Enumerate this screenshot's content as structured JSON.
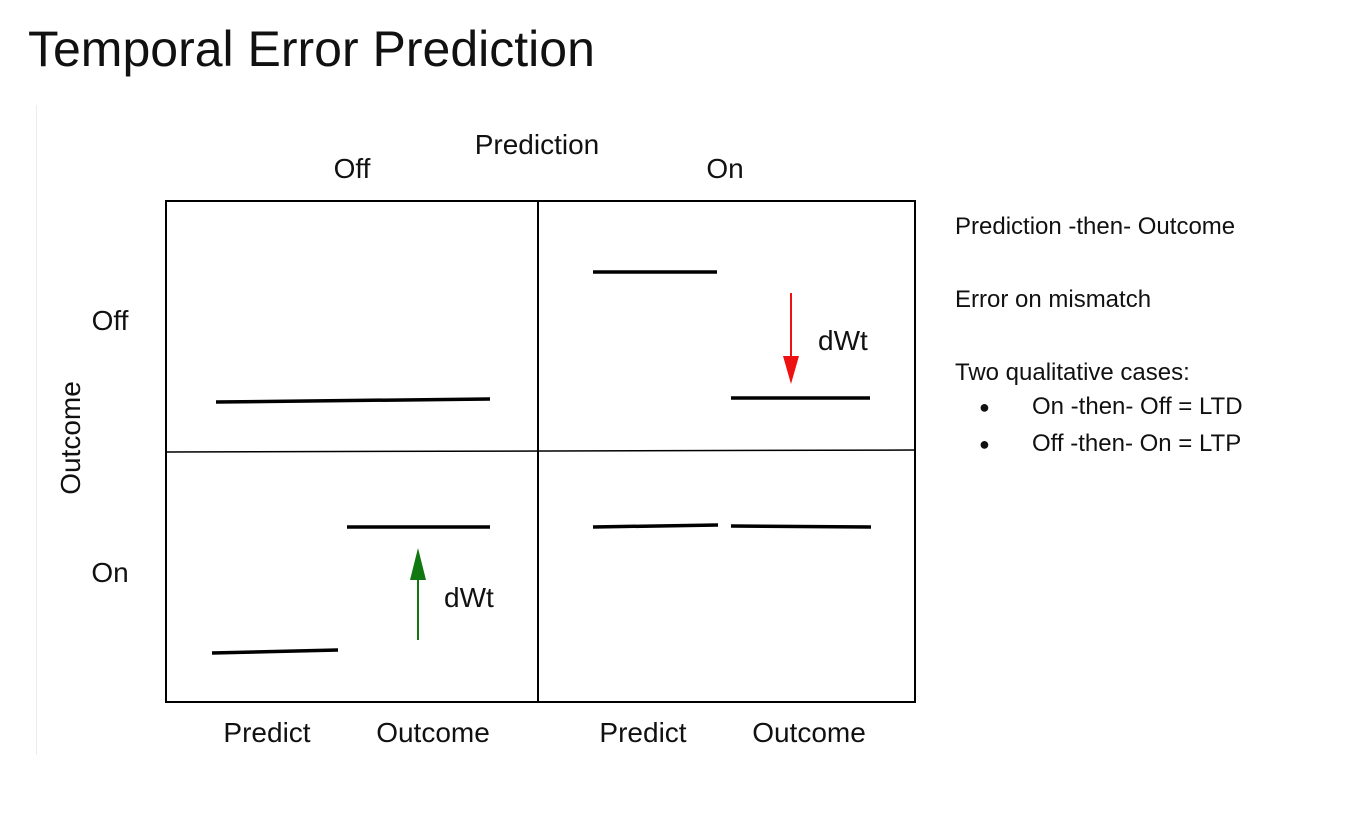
{
  "title": "Temporal Error Prediction",
  "diagram": {
    "column_axis_title": "Prediction",
    "column_labels": [
      "Off",
      "On"
    ],
    "row_axis_title": "Outcome",
    "row_labels": [
      "Off",
      "On"
    ],
    "bottom_labels": [
      "Predict",
      "Outcome",
      "Predict",
      "Outcome"
    ],
    "cell_off_on_arrow_label": "dWt",
    "cell_on_off_arrow_label": "dWt",
    "colors": {
      "decrease_arrow": "#ee1111",
      "increase_arrow": "#117711",
      "lines": "#000000"
    }
  },
  "notes": {
    "line1": "Prediction -then- Outcome",
    "line2": "Error on mismatch",
    "line3": "Two qualitative cases:",
    "bullets": [
      {
        "glyph": "●",
        "text": "On -then- Off = LTD"
      },
      {
        "glyph": "●",
        "text": "Off -then- On = LTP"
      }
    ]
  }
}
